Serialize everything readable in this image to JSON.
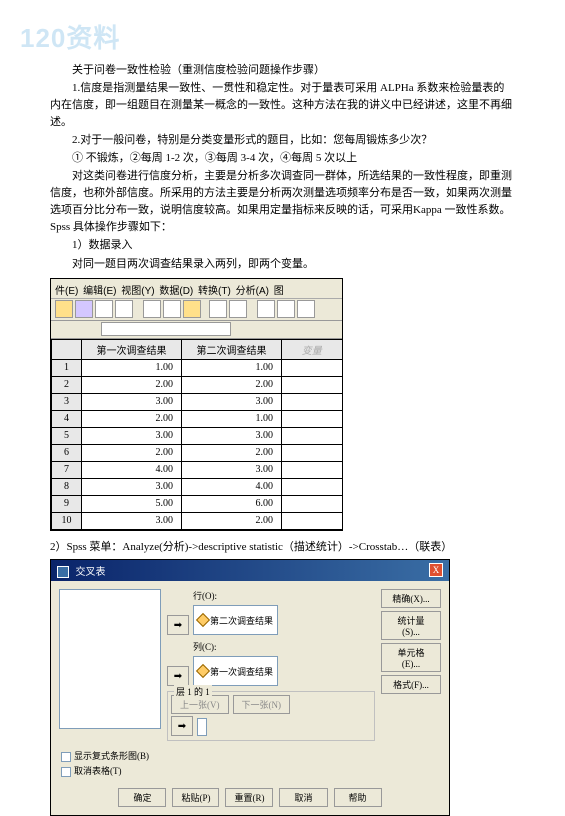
{
  "watermark": "120资料",
  "title": "关于问卷一致性检验（重测信度检验问题操作步骤）",
  "p1": "1.信度是指测量结果一致性、一贯性和稳定性。对于量表可采用 ALPHa 系数来检验量表的内在信度，即一组题目在测量某一概念的一致性。这种方法在我的讲义中已经讲述，这里不再细述。",
  "p2": "2.对于一般问卷，特别是分类变量形式的题目，比如：您每周锻炼多少次？",
  "p3": "① 不锻炼，②每周 1-2 次，③每周 3-4 次，④每周 5 次以上",
  "p4": "对这类问卷进行信度分析，主要是分析多次调查同一群体，所选结果的一致性程度，即重测信度，也称外部信度。所采用的方法主要是分析两次测量选项频率分布是否一致，如果两次测量选项百分比分布一致，说明信度较高。如果用定量指标来反映的话，可采用Kappa 一致性系数。Spss 具体操作步骤如下：",
  "p5": "1）数据录入",
  "p6": "对同一题目两次调查结果录入两列，即两个变量。",
  "spss": {
    "menu": [
      "件(E)",
      "编辑(E)",
      "视图(Y)",
      "数据(D)",
      "转换(T)",
      "分析(A)",
      "图"
    ],
    "headers": [
      "第一次调查结果",
      "第二次调查结果"
    ],
    "ghost": "变量",
    "rows": [
      [
        1,
        "1.00",
        "1.00"
      ],
      [
        2,
        "2.00",
        "2.00"
      ],
      [
        3,
        "3.00",
        "3.00"
      ],
      [
        4,
        "2.00",
        "1.00"
      ],
      [
        5,
        "3.00",
        "3.00"
      ],
      [
        6,
        "2.00",
        "2.00"
      ],
      [
        7,
        "4.00",
        "3.00"
      ],
      [
        8,
        "3.00",
        "4.00"
      ],
      [
        9,
        "5.00",
        "6.00"
      ],
      [
        10,
        "3.00",
        "2.00"
      ]
    ]
  },
  "p7": "2）Spss 菜单：Analyze(分析)->descriptive statistic（描述统计）->Crosstab…（联表）",
  "crosstab": {
    "title": "交叉表",
    "close": "X",
    "row_label": "行(O):",
    "row_field": "第二次调查结果",
    "col_label": "列(C):",
    "col_field": "第一次调查结果",
    "layer_label": "层 1 的 1",
    "prev": "上一张(V)",
    "next": "下一张(N)",
    "right_buttons": [
      "精确(X)...",
      "统计量(S)...",
      "单元格(E)...",
      "格式(F)..."
    ],
    "checks": [
      "显示复式条形图(B)",
      "取消表格(T)"
    ],
    "bottom": [
      "确定",
      "粘贴(P)",
      "重置(R)",
      "取消",
      "帮助"
    ]
  }
}
